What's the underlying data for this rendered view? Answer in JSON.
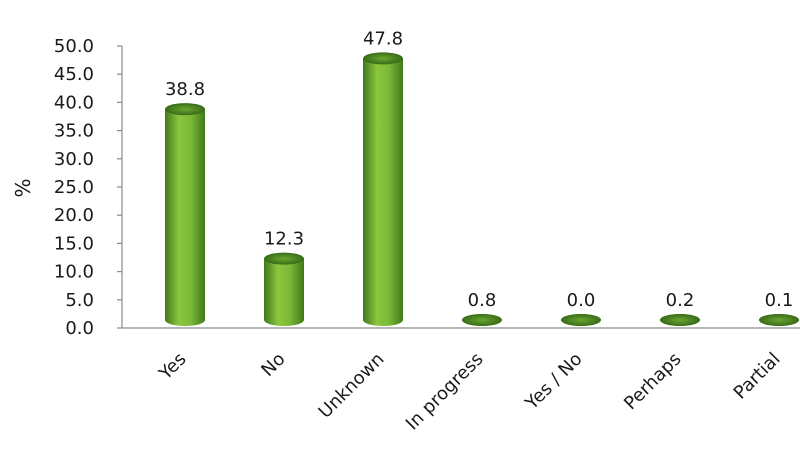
{
  "chart_data": {
    "type": "bar",
    "title": "",
    "xlabel": "",
    "ylabel": "%",
    "categories": [
      "Yes",
      "No",
      "Unknown",
      "In progress",
      "Yes / No",
      "Perhaps",
      "Partial"
    ],
    "values": [
      38.8,
      12.3,
      47.8,
      0.8,
      0.0,
      0.2,
      0.1
    ],
    "data_labels": [
      "38.8",
      "12.3",
      "47.8",
      "0.8",
      "0.0",
      "0.2",
      "0.1"
    ],
    "ylim": [
      0,
      50
    ],
    "yticks": [
      "0.0",
      "5.0",
      "10.0",
      "15.0",
      "20.0",
      "25.0",
      "30.0",
      "35.0",
      "40.0",
      "45.0",
      "50.0"
    ],
    "grid": false,
    "legend": "none",
    "bar_style": "3d-cylinder",
    "colors": {
      "bar_light": "#8cc63f",
      "bar_mid": "#6aa631",
      "bar_dark": "#3f7a1a",
      "bar_top": "#5a9a26",
      "bar_top_dark": "#2f5f12"
    }
  }
}
